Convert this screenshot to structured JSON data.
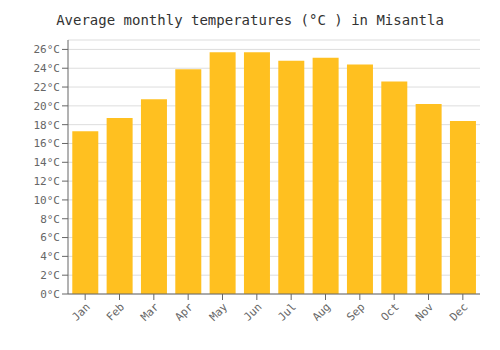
{
  "chart_data": {
    "type": "bar",
    "title": "Average monthly temperatures (°C ) in Misantla",
    "categories": [
      "Jan",
      "Feb",
      "Mar",
      "Apr",
      "May",
      "Jun",
      "Jul",
      "Aug",
      "Sep",
      "Oct",
      "Nov",
      "Dec"
    ],
    "values": [
      17.3,
      18.7,
      20.7,
      23.9,
      25.7,
      25.7,
      24.8,
      25.1,
      24.4,
      22.6,
      20.2,
      18.4
    ],
    "color": "#FFC020",
    "ylim": [
      0,
      27
    ],
    "yticks": [
      {
        "value": 0,
        "label": "0°C"
      },
      {
        "value": 2,
        "label": "2°C"
      },
      {
        "value": 4,
        "label": "4°C"
      },
      {
        "value": 6,
        "label": "6°C"
      },
      {
        "value": 8,
        "label": "8°C"
      },
      {
        "value": 10,
        "label": "10°C"
      },
      {
        "value": 12,
        "label": "12°C"
      },
      {
        "value": 14,
        "label": "14°C"
      },
      {
        "value": 16,
        "label": "16°C"
      },
      {
        "value": 18,
        "label": "18°C"
      },
      {
        "value": 20,
        "label": "20°C"
      },
      {
        "value": 22,
        "label": "22°C"
      },
      {
        "value": 24,
        "label": "24°C"
      },
      {
        "value": 26,
        "label": "26°C"
      }
    ],
    "grid": true
  }
}
